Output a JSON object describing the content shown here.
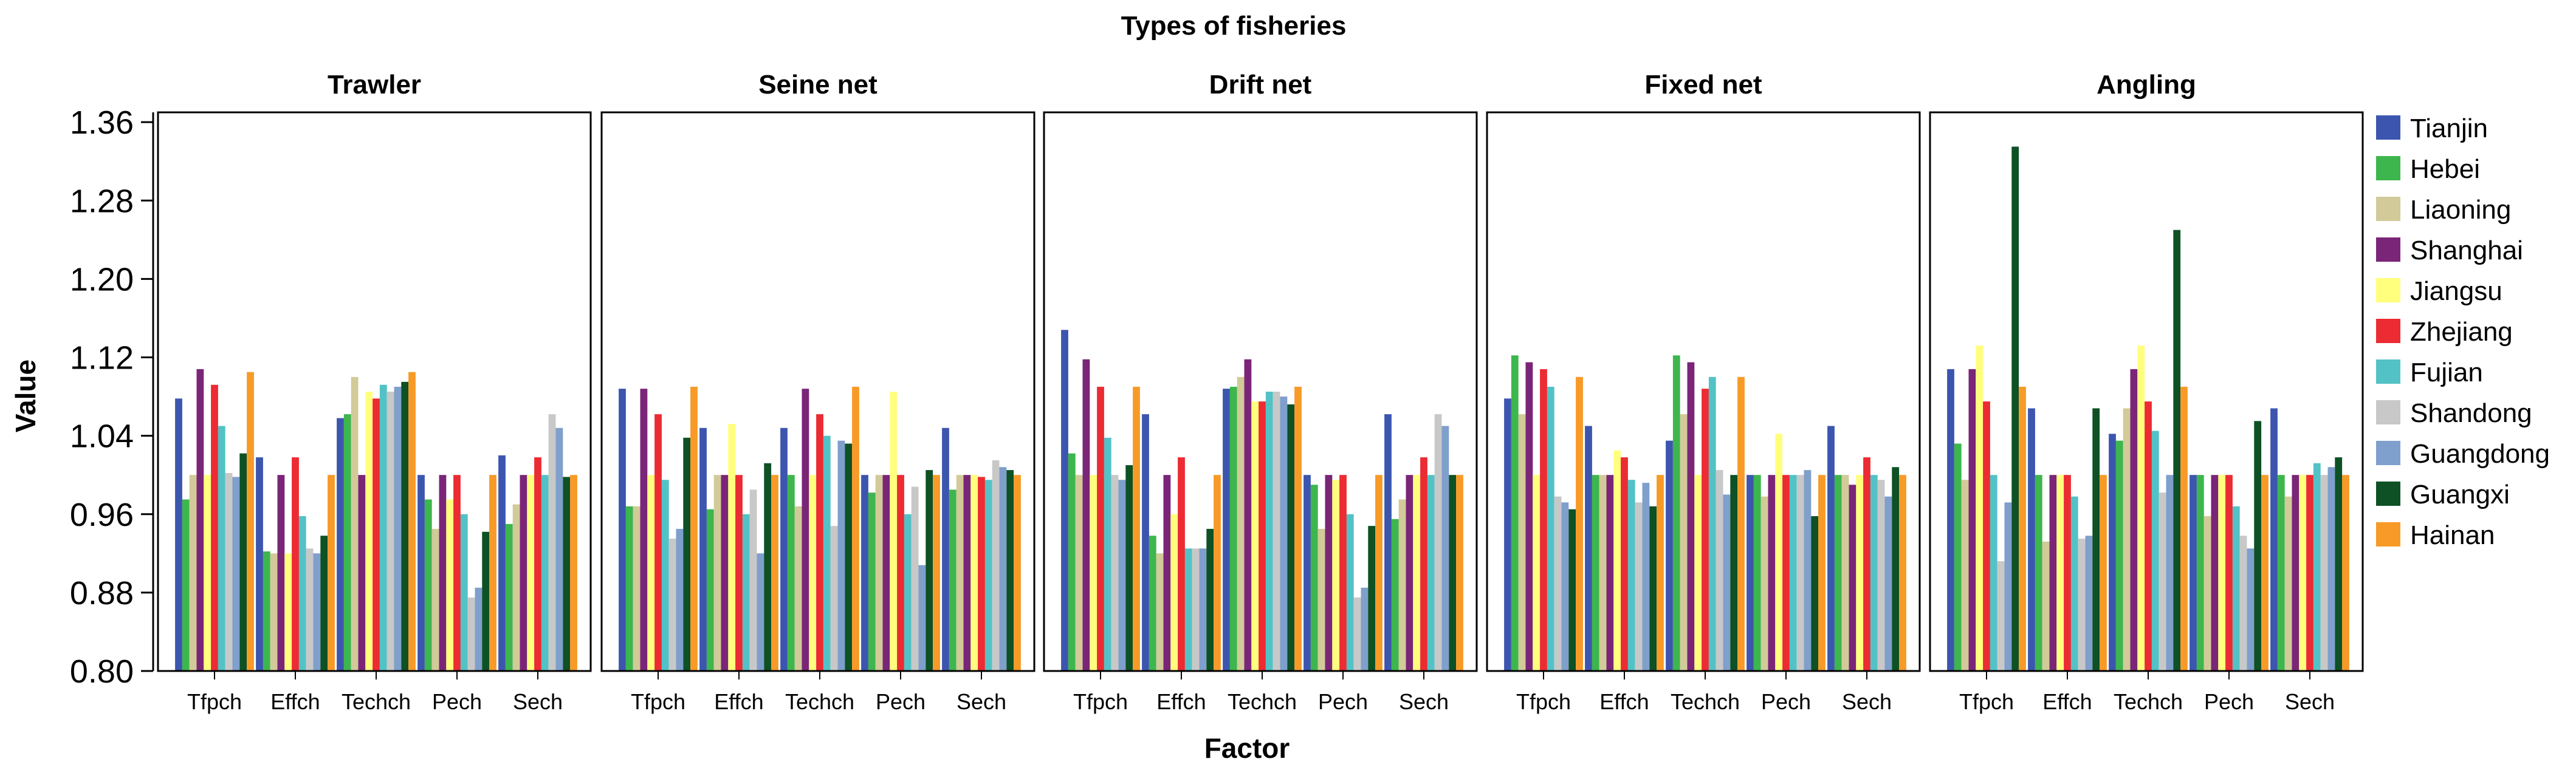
{
  "chart_data": {
    "type": "bar",
    "title": "Types of fisheries",
    "xlabel": "Factor",
    "ylabel": "Value",
    "ylim": [
      0.8,
      1.37
    ],
    "yticks": [
      0.8,
      0.88,
      0.96,
      1.04,
      1.12,
      1.2,
      1.28,
      1.36
    ],
    "ytick_labels": [
      "0.80",
      "0.88",
      "0.96",
      "1.04",
      "1.12",
      "1.20",
      "1.28",
      "1.36"
    ],
    "categories": [
      "Tfpch",
      "Effch",
      "Techch",
      "Pech",
      "Sech"
    ],
    "provinces": [
      "Tianjin",
      "Hebei",
      "Liaoning",
      "Shanghai",
      "Jiangsu",
      "Zhejiang",
      "Fujian",
      "Shandong",
      "Guangdong",
      "Guangxi",
      "Hainan"
    ],
    "colors": [
      "#3C56AF",
      "#3DB64D",
      "#D2CA98",
      "#7A2578",
      "#FFFF7D",
      "#EC2B33",
      "#53C2C6",
      "#C8C8C8",
      "#7F9FCC",
      "#0D5125",
      "#F79A27"
    ],
    "legend_position": "right",
    "panels": [
      {
        "name": "Trawler",
        "values": [
          [
            1.078,
            0.975,
            1.0,
            1.108,
            1.0,
            1.092,
            1.05,
            1.002,
            0.998,
            1.022,
            1.105
          ],
          [
            1.018,
            0.922,
            0.92,
            1.0,
            0.92,
            1.018,
            0.958,
            0.925,
            0.92,
            0.938,
            1.0
          ],
          [
            1.058,
            1.062,
            1.1,
            1.0,
            1.085,
            1.078,
            1.092,
            1.085,
            1.09,
            1.095,
            1.105
          ],
          [
            1.0,
            0.975,
            0.945,
            1.0,
            0.975,
            1.0,
            0.96,
            0.875,
            0.885,
            0.942,
            1.0
          ],
          [
            1.02,
            0.95,
            0.97,
            1.0,
            1.0,
            1.018,
            1.0,
            1.062,
            1.048,
            0.998,
            1.0
          ]
        ]
      },
      {
        "name": "Seine net",
        "values": [
          [
            1.088,
            0.968,
            0.968,
            1.088,
            1.0,
            1.062,
            0.995,
            0.935,
            0.945,
            1.038,
            1.09
          ],
          [
            1.048,
            0.965,
            1.0,
            1.0,
            1.052,
            1.0,
            0.96,
            0.985,
            0.92,
            1.012,
            1.0
          ],
          [
            1.048,
            1.0,
            0.968,
            1.088,
            1.0,
            1.062,
            1.04,
            0.948,
            1.035,
            1.032,
            1.09
          ],
          [
            1.0,
            0.982,
            1.0,
            1.0,
            1.085,
            1.0,
            0.96,
            0.988,
            0.908,
            1.005,
            1.0
          ],
          [
            1.048,
            0.985,
            1.0,
            1.0,
            1.0,
            0.998,
            0.995,
            1.015,
            1.008,
            1.005,
            1.0
          ]
        ]
      },
      {
        "name": "Drift net",
        "values": [
          [
            1.148,
            1.022,
            1.0,
            1.118,
            1.0,
            1.09,
            1.038,
            1.0,
            0.995,
            1.01,
            1.09
          ],
          [
            1.062,
            0.938,
            0.92,
            1.0,
            0.96,
            1.018,
            0.925,
            0.925,
            0.925,
            0.945,
            1.0
          ],
          [
            1.088,
            1.09,
            1.1,
            1.118,
            1.075,
            1.075,
            1.085,
            1.085,
            1.08,
            1.072,
            1.09
          ],
          [
            1.0,
            0.99,
            0.945,
            1.0,
            0.995,
            1.0,
            0.96,
            0.875,
            0.885,
            0.948,
            1.0
          ],
          [
            1.062,
            0.955,
            0.975,
            1.0,
            1.0,
            1.018,
            1.0,
            1.062,
            1.05,
            1.0,
            1.0
          ]
        ]
      },
      {
        "name": "Fixed net",
        "values": [
          [
            1.078,
            1.122,
            1.062,
            1.115,
            1.0,
            1.108,
            1.09,
            0.978,
            0.972,
            0.965,
            1.1
          ],
          [
            1.05,
            1.0,
            1.0,
            1.0,
            1.025,
            1.018,
            0.995,
            0.972,
            0.992,
            0.968,
            1.0
          ],
          [
            1.035,
            1.122,
            1.062,
            1.115,
            1.0,
            1.088,
            1.1,
            1.005,
            0.98,
            1.0,
            1.1
          ],
          [
            1.0,
            1.0,
            0.978,
            1.0,
            1.042,
            1.0,
            1.0,
            1.0,
            1.005,
            0.958,
            1.0
          ],
          [
            1.05,
            1.0,
            1.0,
            0.99,
            1.0,
            1.018,
            1.0,
            0.995,
            0.978,
            1.008,
            1.0
          ]
        ]
      },
      {
        "name": "Angling",
        "values": [
          [
            1.108,
            1.032,
            0.995,
            1.108,
            1.132,
            1.075,
            1.0,
            0.912,
            0.972,
            1.335,
            1.09
          ],
          [
            1.068,
            1.0,
            0.932,
            1.0,
            1.0,
            1.0,
            0.978,
            0.935,
            0.938,
            1.068,
            1.0
          ],
          [
            1.042,
            1.035,
            1.068,
            1.108,
            1.132,
            1.075,
            1.045,
            0.982,
            1.0,
            1.25,
            1.09
          ],
          [
            1.0,
            1.0,
            0.958,
            1.0,
            1.0,
            1.0,
            0.968,
            0.938,
            0.925,
            1.055,
            1.0
          ],
          [
            1.068,
            1.0,
            0.978,
            1.0,
            1.0,
            1.0,
            1.012,
            1.0,
            1.008,
            1.018,
            1.0
          ]
        ]
      }
    ]
  }
}
